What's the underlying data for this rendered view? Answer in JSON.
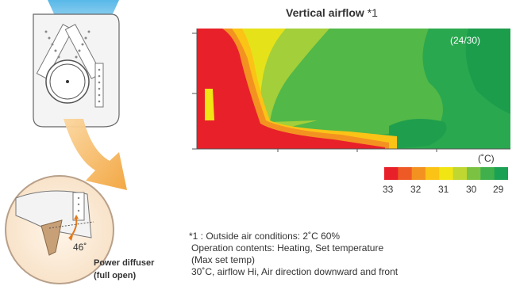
{
  "title": {
    "main": "Vertical airflow",
    "note_ref": " *1"
  },
  "plot": {
    "label": "(24/30)"
  },
  "scale": {
    "unit": "(˚C)",
    "values": [
      "33",
      "32",
      "31",
      "30",
      "29"
    ],
    "colors": [
      "#e8202a",
      "#ee5a25",
      "#f39221",
      "#fbc316",
      "#f1e514",
      "#bfd730",
      "#7cc242",
      "#3fb04c",
      "#1ba153"
    ]
  },
  "diffuser": {
    "angle": "46˚",
    "label_line1": "Power diffuser",
    "label_line2": "(full open)"
  },
  "notes": {
    "line1": "*1 : Outside air conditions: 2˚C 60%",
    "line2": "Operation contents: Heating, Set temperature",
    "line3": "(Max set temp)",
    "line4": "30˚C, airflow Hi, Air direction downward and front"
  }
}
